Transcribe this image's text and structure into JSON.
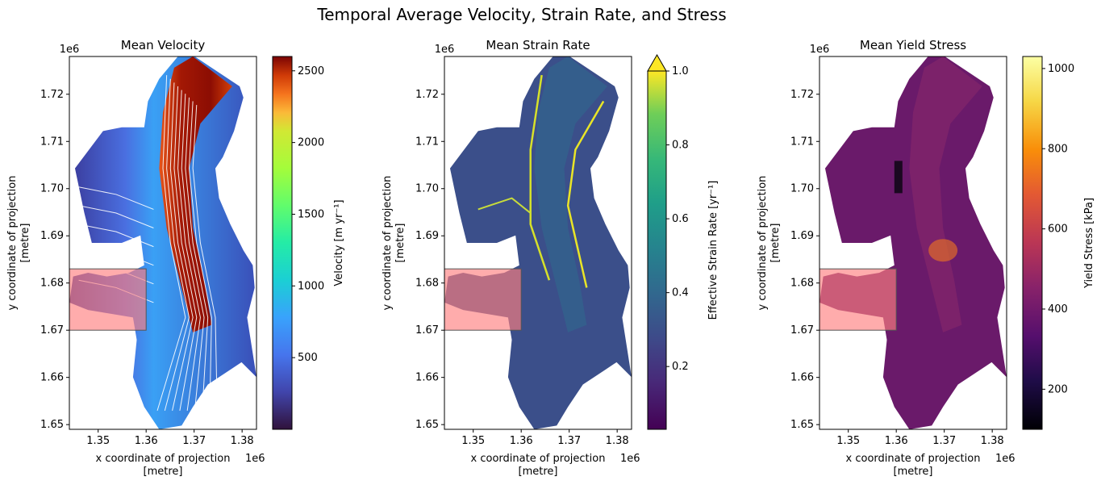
{
  "figure_title": "Temporal Average Velocity, Strain Rate, and Stress",
  "chart_data": [
    {
      "type": "heatmap",
      "title": "Mean Velocity",
      "xlabel": "x coordinate of projection\n[metre]",
      "ylabel": "y coordinate of projection\n[metre]",
      "x_offset_label": "1e6",
      "y_offset_label": "1e6",
      "xlim": [
        1.344,
        1.383
      ],
      "ylim": [
        1.649,
        1.728
      ],
      "xticks": [
        1.35,
        1.36,
        1.37,
        1.38
      ],
      "xtick_labels": [
        "1.35",
        "1.36",
        "1.37",
        "1.38"
      ],
      "yticks": [
        1.65,
        1.66,
        1.67,
        1.68,
        1.69,
        1.7,
        1.71,
        1.72
      ],
      "ytick_labels": [
        "1.65",
        "1.66",
        "1.67",
        "1.68",
        "1.69",
        "1.70",
        "1.71",
        "1.72"
      ],
      "colormap": "turbo",
      "colorbar_label": "Velocity [m yr⁻¹]",
      "colorbar_range": [
        0,
        2600
      ],
      "colorbar_ticks": [
        500,
        1000,
        1500,
        2000,
        2500
      ],
      "colorbar_extend": "none",
      "overlay": "streamlines",
      "highlight_box": {
        "x": [
          1.344,
          1.36
        ],
        "y": [
          1.67,
          1.683
        ],
        "color": "#ff7f7f"
      }
    },
    {
      "type": "heatmap",
      "title": "Mean Strain Rate",
      "xlabel": "x coordinate of projection\n[metre]",
      "ylabel": "y coordinate of projection\n[metre]",
      "x_offset_label": "1e6",
      "y_offset_label": "1e6",
      "xlim": [
        1.344,
        1.383
      ],
      "ylim": [
        1.649,
        1.728
      ],
      "xticks": [
        1.35,
        1.36,
        1.37,
        1.38
      ],
      "xtick_labels": [
        "1.35",
        "1.36",
        "1.37",
        "1.38"
      ],
      "yticks": [
        1.65,
        1.66,
        1.67,
        1.68,
        1.69,
        1.7,
        1.71,
        1.72
      ],
      "ytick_labels": [
        "1.65",
        "1.66",
        "1.67",
        "1.68",
        "1.69",
        "1.70",
        "1.71",
        "1.72"
      ],
      "colormap": "viridis",
      "colorbar_label": "Effective Strain Rate [yr⁻¹]",
      "colorbar_range": [
        0.03,
        1.0
      ],
      "colorbar_ticks": [
        0.2,
        0.4,
        0.6,
        0.8,
        1.0
      ],
      "colorbar_extend": "max",
      "highlight_box": {
        "x": [
          1.344,
          1.36
        ],
        "y": [
          1.67,
          1.683
        ],
        "color": "#ff7f7f"
      }
    },
    {
      "type": "heatmap",
      "title": "Mean Yield Stress",
      "xlabel": "x coordinate of projection\n[metre]",
      "ylabel": "y coordinate of projection\n[metre]",
      "x_offset_label": "1e6",
      "y_offset_label": "1e6",
      "xlim": [
        1.344,
        1.383
      ],
      "ylim": [
        1.649,
        1.728
      ],
      "xticks": [
        1.35,
        1.36,
        1.37,
        1.38
      ],
      "xtick_labels": [
        "1.35",
        "1.36",
        "1.37",
        "1.38"
      ],
      "yticks": [
        1.65,
        1.66,
        1.67,
        1.68,
        1.69,
        1.7,
        1.71,
        1.72
      ],
      "ytick_labels": [
        "1.65",
        "1.66",
        "1.67",
        "1.68",
        "1.69",
        "1.70",
        "1.71",
        "1.72"
      ],
      "colormap": "inferno",
      "colorbar_label": "Yield Stress [kPa]",
      "colorbar_range": [
        100,
        1030
      ],
      "colorbar_ticks": [
        200,
        400,
        600,
        800,
        1000
      ],
      "colorbar_extend": "none",
      "highlight_box": {
        "x": [
          1.344,
          1.36
        ],
        "y": [
          1.67,
          1.683
        ],
        "color": "#ff7f7f"
      }
    }
  ]
}
